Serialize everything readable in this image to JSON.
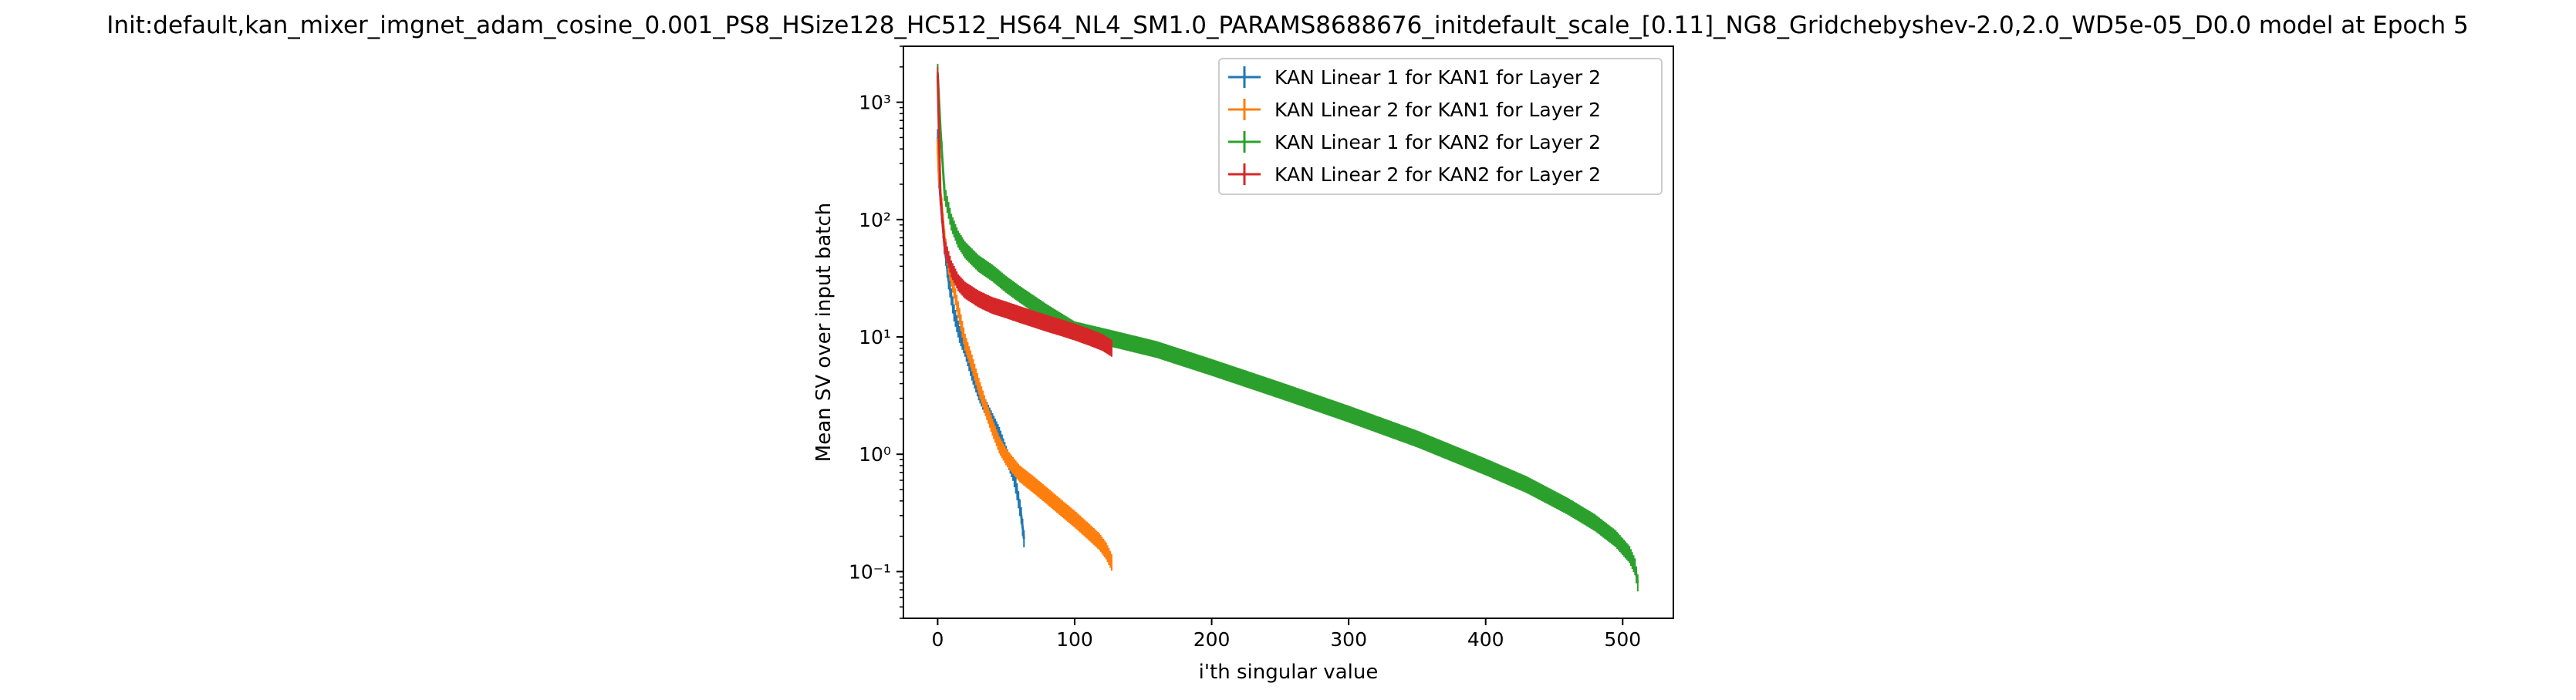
{
  "chart_data": {
    "type": "line",
    "title": "Init:default,kan_mixer_imgnet_adam_cosine_0.001_PS8_HSize128_HC512_HS64_NL4_SM1.0_PARAMS8688676_initdefault_scale_[0.11]_NG8_Gridchebyshev-2.0,2.0_WD5e-05_D0.0 model at Epoch 5",
    "xlabel": "i'th singular value",
    "ylabel": "Mean SV over input batch",
    "xscale": "linear",
    "yscale": "log",
    "xlim": [
      -25,
      537
    ],
    "ylim": [
      0.04,
      3000
    ],
    "xticks": [
      0,
      100,
      200,
      300,
      400,
      500
    ],
    "xtick_labels": [
      "0",
      "100",
      "200",
      "300",
      "400",
      "500"
    ],
    "yticks": [
      0.1,
      1,
      10,
      100,
      1000
    ],
    "ytick_labels": [
      "10⁻¹",
      "10⁰",
      "10¹",
      "10²",
      "10³"
    ],
    "grid": false,
    "legend_position": "upper right",
    "series": [
      {
        "name": "KAN Linear 1 for KAN1 for Layer 2",
        "color": "#1f77b4",
        "n": 64,
        "x": [
          0,
          1,
          3,
          5,
          8,
          12,
          16,
          20,
          25,
          30,
          35,
          40,
          45,
          50,
          55,
          58,
          61,
          63
        ],
        "y": [
          500,
          220,
          110,
          60,
          30,
          16,
          10.5,
          8.0,
          5.0,
          3.4,
          2.5,
          1.9,
          1.45,
          1.0,
          0.7,
          0.48,
          0.3,
          0.19
        ]
      },
      {
        "name": "KAN Linear 2 for KAN1 for Layer 2",
        "color": "#ff7f0e",
        "n": 128,
        "x": [
          0,
          1,
          3,
          5,
          8,
          12,
          16,
          20,
          25,
          30,
          35,
          40,
          45,
          50,
          55,
          60,
          70,
          80,
          90,
          100,
          110,
          118,
          123,
          127
        ],
        "y": [
          420,
          230,
          130,
          70,
          40,
          25,
          15,
          9.0,
          6.0,
          3.8,
          2.5,
          1.7,
          1.2,
          0.95,
          0.8,
          0.68,
          0.55,
          0.44,
          0.35,
          0.28,
          0.22,
          0.18,
          0.15,
          0.12
        ]
      },
      {
        "name": "KAN Linear 1 for KAN2 for Layer 2",
        "color": "#2ca02c",
        "n": 512,
        "x": [
          0,
          2,
          5,
          10,
          15,
          20,
          30,
          40,
          50,
          60,
          80,
          100,
          130,
          160,
          200,
          250,
          300,
          350,
          400,
          430,
          460,
          480,
          495,
          505,
          509,
          511
        ],
        "y": [
          1800,
          600,
          170,
          95,
          68,
          55,
          42,
          35,
          28,
          23,
          16,
          11.5,
          9.5,
          7.8,
          5.5,
          3.5,
          2.2,
          1.35,
          0.78,
          0.55,
          0.36,
          0.26,
          0.19,
          0.14,
          0.11,
          0.08
        ]
      },
      {
        "name": "KAN Linear 2 for KAN2 for Layer 2",
        "color": "#d62728",
        "n": 128,
        "x": [
          0,
          2,
          5,
          10,
          15,
          20,
          30,
          40,
          50,
          60,
          70,
          80,
          90,
          100,
          110,
          120,
          127
        ],
        "y": [
          1700,
          160,
          60,
          38,
          29,
          25,
          21,
          18.5,
          17,
          15.5,
          14.2,
          13,
          12,
          11,
          10,
          9.0,
          8.0
        ]
      }
    ]
  }
}
